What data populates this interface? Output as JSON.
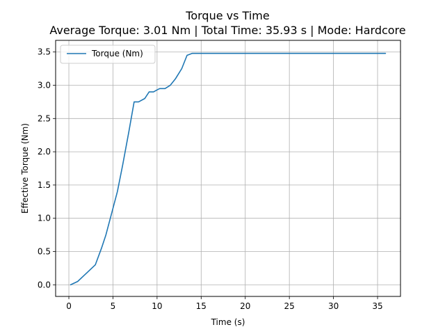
{
  "chart_data": {
    "type": "line",
    "title": "Torque vs Time",
    "subtitle": "Average Torque: 3.01 Nm | Total Time: 35.93 s | Mode: Hardcore",
    "xlabel": "Time (s)",
    "ylabel": "Effective Torque (Nm)",
    "xlim": [
      -1.5,
      37.6
    ],
    "ylim": [
      -0.175,
      3.675
    ],
    "xticks": [
      0,
      5,
      10,
      15,
      20,
      25,
      30,
      35
    ],
    "yticks": [
      0.0,
      0.5,
      1.0,
      1.5,
      2.0,
      2.5,
      3.0,
      3.5
    ],
    "xtick_labels": [
      "0",
      "5",
      "10",
      "15",
      "20",
      "25",
      "30",
      "35"
    ],
    "ytick_labels": [
      "0.0",
      "0.5",
      "1.0",
      "1.5",
      "2.0",
      "2.5",
      "3.0",
      "3.5"
    ],
    "grid": true,
    "legend_position": "top-left",
    "series": [
      {
        "name": "Torque (Nm)",
        "color": "#1f77b4",
        "x": [
          0.2,
          1.0,
          1.8,
          2.2,
          3.0,
          3.7,
          4.2,
          4.8,
          5.5,
          6.1,
          6.8,
          7.4,
          7.9,
          8.6,
          9.1,
          9.6,
          10.0,
          10.3,
          10.9,
          11.5,
          12.1,
          12.8,
          13.4,
          14.0,
          14.5,
          20.0,
          25.0,
          30.0,
          35.0,
          35.9
        ],
        "y": [
          0.0,
          0.05,
          0.15,
          0.2,
          0.3,
          0.55,
          0.75,
          1.05,
          1.4,
          1.8,
          2.3,
          2.75,
          2.75,
          2.8,
          2.9,
          2.9,
          2.93,
          2.95,
          2.95,
          3.0,
          3.1,
          3.25,
          3.45,
          3.48,
          3.48,
          3.48,
          3.48,
          3.48,
          3.48,
          3.48
        ]
      }
    ]
  }
}
